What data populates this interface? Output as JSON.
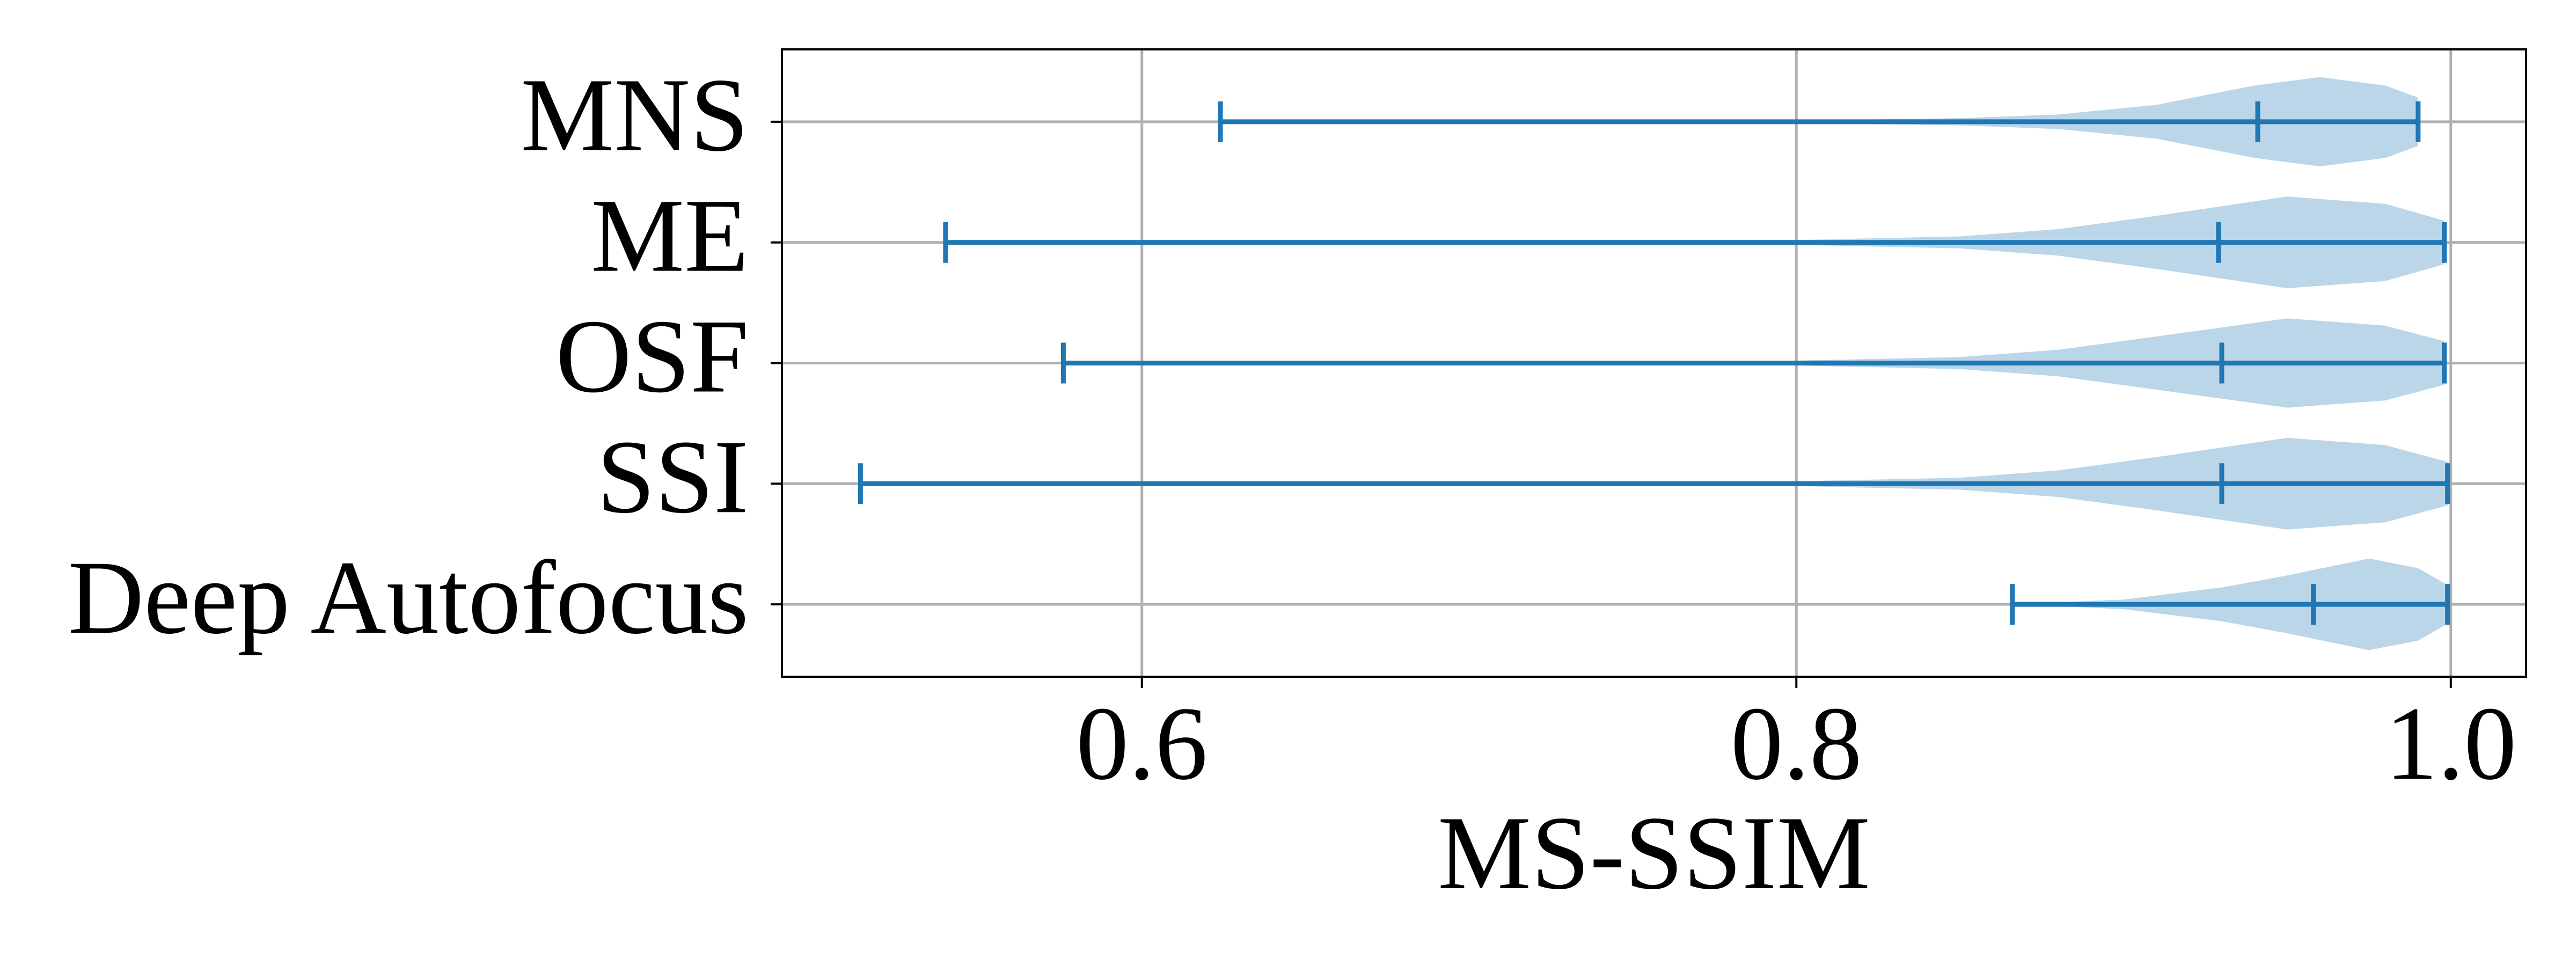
{
  "chart_data": {
    "type": "violin",
    "xlabel": "MS-SSIM",
    "categories": [
      "MNS",
      "ME",
      "OSF",
      "SSI",
      "Deep Autofocus"
    ],
    "min": [
      0.624,
      0.54,
      0.576,
      0.514,
      0.866
    ],
    "median": [
      0.941,
      0.929,
      0.93,
      0.93,
      0.958
    ],
    "max": [
      0.99,
      0.998,
      0.998,
      0.999,
      0.999
    ],
    "density": [
      {
        "x": [
          0.624,
          0.8,
          0.85,
          0.88,
          0.91,
          0.94,
          0.96,
          0.98,
          0.99
        ],
        "width": [
          0,
          0.01,
          0.03,
          0.06,
          0.14,
          0.3,
          0.37,
          0.3,
          0.2
        ]
      },
      {
        "x": [
          0.54,
          0.8,
          0.85,
          0.88,
          0.91,
          0.95,
          0.98,
          0.998
        ],
        "width": [
          0,
          0.02,
          0.05,
          0.11,
          0.22,
          0.38,
          0.32,
          0.18
        ]
      },
      {
        "x": [
          0.576,
          0.8,
          0.85,
          0.88,
          0.91,
          0.95,
          0.98,
          0.998
        ],
        "width": [
          0,
          0.02,
          0.05,
          0.11,
          0.22,
          0.37,
          0.31,
          0.18
        ]
      },
      {
        "x": [
          0.514,
          0.8,
          0.85,
          0.88,
          0.91,
          0.95,
          0.98,
          0.999
        ],
        "width": [
          0,
          0.02,
          0.05,
          0.11,
          0.22,
          0.38,
          0.32,
          0.18
        ]
      },
      {
        "x": [
          0.866,
          0.9,
          0.93,
          0.95,
          0.975,
          0.99,
          0.999
        ],
        "width": [
          0,
          0.04,
          0.14,
          0.24,
          0.38,
          0.3,
          0.16
        ]
      }
    ],
    "color": "#1f77b4",
    "body_opacity": 0.3,
    "xlim": [
      0.49,
      1.023
    ],
    "ylim": [
      0.4,
      5.6
    ],
    "xticks": [
      0.6,
      0.8,
      {
        "value": 1.0,
        "label": "1.0"
      }
    ],
    "grid": true
  }
}
